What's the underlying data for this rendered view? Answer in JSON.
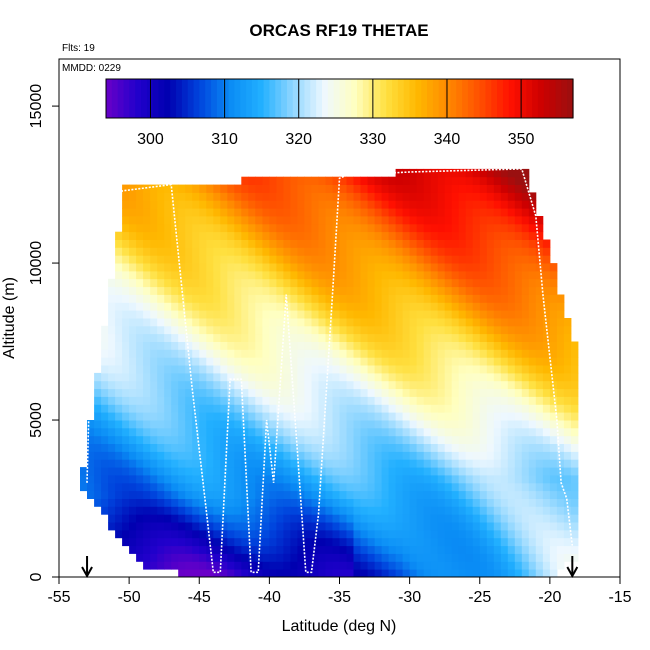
{
  "chart_data": {
    "type": "heatmap",
    "title": "ORCAS RF19 THETAE",
    "annotations": [
      "Flts: 19",
      "MMDD: 0229"
    ],
    "xlabel": "Latitude (deg N)",
    "ylabel": "Altitude (m)",
    "xlim": [
      -55,
      -15
    ],
    "ylim": [
      0,
      16500
    ],
    "xticks": [
      -55,
      -50,
      -45,
      -40,
      -35,
      -30,
      -25,
      -20,
      -15
    ],
    "yticks": [
      0,
      5000,
      10000,
      15000
    ],
    "colorbar": {
      "placement": "top-inside",
      "range": [
        294,
        357
      ],
      "ticks": [
        300,
        310,
        320,
        330,
        340,
        350
      ]
    },
    "colors": {
      "scale": [
        "#6a00c8",
        "#2200cc",
        "#0000b0",
        "#0044dd",
        "#0a8cf5",
        "#22b0ff",
        "#8fd6ff",
        "#eef8ff",
        "#ffffc0",
        "#ffe040",
        "#ffb800",
        "#ff8800",
        "#ff5000",
        "#ff1000",
        "#cc0000",
        "#9a1010"
      ],
      "flight_track": "#ffffff"
    },
    "data_extent_lat": [
      -53.5,
      -18.4
    ],
    "markers_lat": [
      -53,
      -18.4
    ],
    "flight_track": {
      "lat": [
        -53.0,
        -52.8,
        -52.5,
        -52.0,
        -51.5,
        -51.0,
        -50.5,
        -47.0,
        -45.5,
        -44.6,
        -44.0,
        -43.5,
        -42.8,
        -42.0,
        -41.3,
        -40.8,
        -40.2,
        -39.7,
        -38.8,
        -38.0,
        -37.4,
        -37.0,
        -36.5,
        -35.5,
        -35.0,
        -34.5,
        -30.0,
        -22.0,
        -21.0,
        -20.5,
        -20.0,
        -19.5,
        -19.2,
        -18.8,
        -18.4
      ],
      "alt_m": [
        3000,
        6500,
        8000,
        9500,
        10500,
        11500,
        12300,
        12500,
        6000,
        2500,
        150,
        150,
        6300,
        6300,
        150,
        150,
        5000,
        3000,
        9000,
        4000,
        150,
        150,
        2000,
        9000,
        12700,
        12800,
        12900,
        13000,
        11500,
        9000,
        7000,
        5000,
        3000,
        2500,
        1000
      ]
    }
  }
}
